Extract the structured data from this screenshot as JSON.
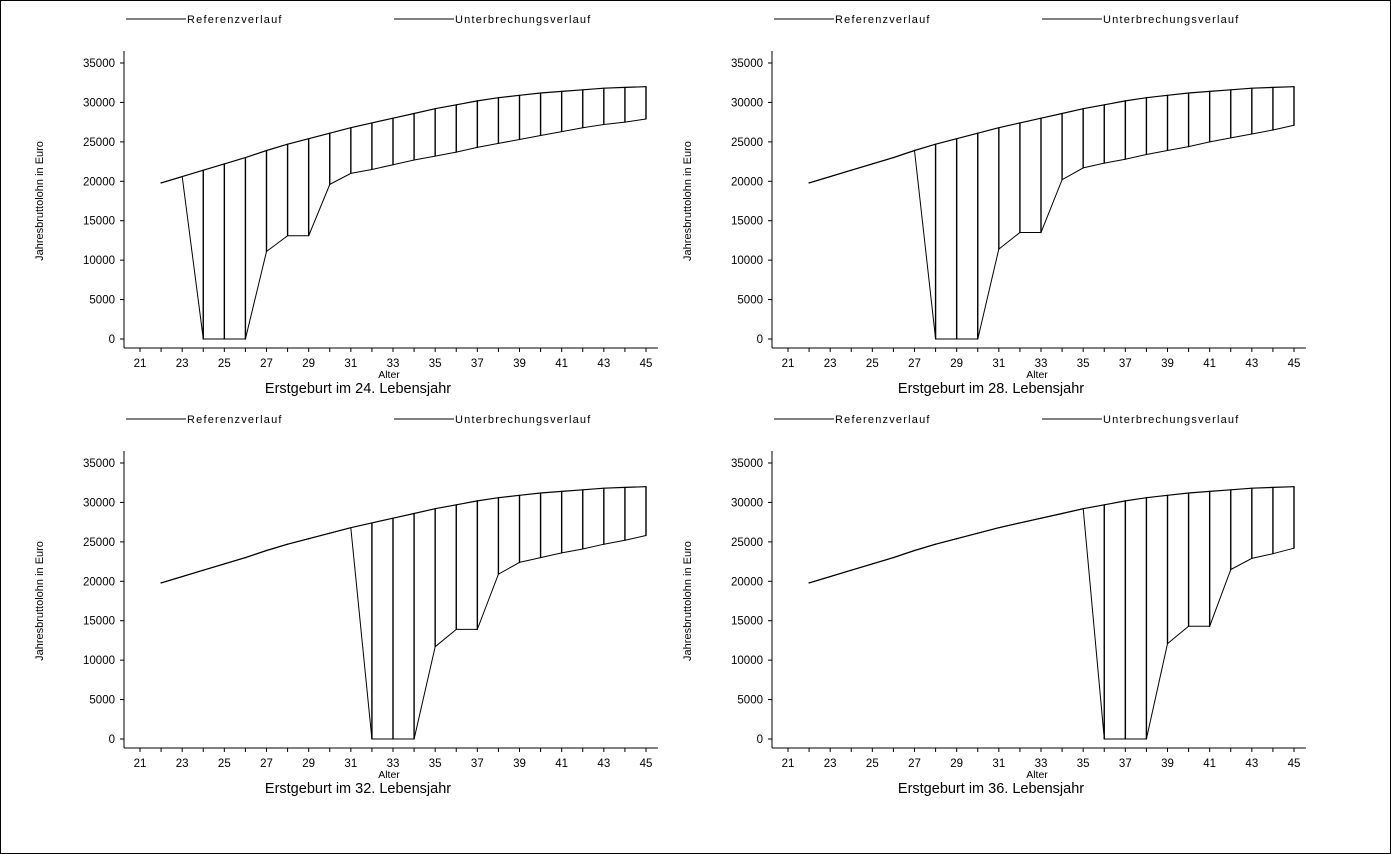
{
  "chart_data": [
    {
      "type": "line",
      "title": "Erstgeburt im 24. Lebensjahr",
      "xlabel": "Alter",
      "ylabel": "Jahresbruttolohn in Euro",
      "xlim": [
        21,
        45
      ],
      "ylim": [
        0,
        35000
      ],
      "xticks": [
        "21",
        "23",
        "25",
        "27",
        "29",
        "31",
        "33",
        "35",
        "37",
        "39",
        "41",
        "43",
        "45"
      ],
      "yticks": [
        "0",
        "5000",
        "10000",
        "15000",
        "20000",
        "25000",
        "30000",
        "35000"
      ],
      "legend": [
        "Referenzverlauf",
        "Unterbrechungsverlauf"
      ],
      "legend_position": "top",
      "x": [
        22,
        23,
        24,
        25,
        26,
        27,
        28,
        29,
        30,
        31,
        32,
        33,
        34,
        35,
        36,
        37,
        38,
        39,
        40,
        41,
        42,
        43,
        44,
        45
      ],
      "series": [
        {
          "name": "Referenzverlauf",
          "values": [
            19800,
            20600,
            21400,
            22200,
            23000,
            23900,
            24700,
            25400,
            26100,
            26800,
            27400,
            28000,
            28600,
            29200,
            29700,
            30200,
            30600,
            30900,
            31200,
            31400,
            31600,
            31800,
            31900,
            32000
          ]
        },
        {
          "name": "Unterbrechungsverlauf",
          "values": [
            19800,
            20600,
            0,
            0,
            0,
            11100,
            13100,
            13100,
            19600,
            21000,
            21500,
            22100,
            22700,
            23200,
            23700,
            24300,
            24800,
            25300,
            25800,
            26300,
            26800,
            27200,
            27500,
            27900
          ]
        }
      ]
    },
    {
      "type": "line",
      "title": "Erstgeburt im 28. Lebensjahr",
      "xlabel": "Alter",
      "ylabel": "Jahresbruttolohn in Euro",
      "xlim": [
        21,
        45
      ],
      "ylim": [
        0,
        35000
      ],
      "xticks": [
        "21",
        "23",
        "25",
        "27",
        "29",
        "31",
        "33",
        "35",
        "37",
        "39",
        "41",
        "43",
        "45"
      ],
      "yticks": [
        "0",
        "5000",
        "10000",
        "15000",
        "20000",
        "25000",
        "30000",
        "35000"
      ],
      "legend": [
        "Referenzverlauf",
        "Unterbrechungsverlauf"
      ],
      "legend_position": "top",
      "x": [
        22,
        23,
        24,
        25,
        26,
        27,
        28,
        29,
        30,
        31,
        32,
        33,
        34,
        35,
        36,
        37,
        38,
        39,
        40,
        41,
        42,
        43,
        44,
        45
      ],
      "series": [
        {
          "name": "Referenzverlauf",
          "values": [
            19800,
            20600,
            21400,
            22200,
            23000,
            23900,
            24700,
            25400,
            26100,
            26800,
            27400,
            28000,
            28600,
            29200,
            29700,
            30200,
            30600,
            30900,
            31200,
            31400,
            31600,
            31800,
            31900,
            32000
          ]
        },
        {
          "name": "Unterbrechungsverlauf",
          "values": [
            19800,
            20600,
            21400,
            22200,
            23000,
            23900,
            0,
            0,
            0,
            11400,
            13500,
            13500,
            20200,
            21700,
            22300,
            22800,
            23400,
            23900,
            24400,
            25000,
            25500,
            26000,
            26500,
            27100
          ]
        }
      ]
    },
    {
      "type": "line",
      "title": "Erstgeburt im 32. Lebensjahr",
      "xlabel": "Alter",
      "ylabel": "Jahresbruttolohn in Euro",
      "xlim": [
        21,
        45
      ],
      "ylim": [
        0,
        35000
      ],
      "xticks": [
        "21",
        "23",
        "25",
        "27",
        "29",
        "31",
        "33",
        "35",
        "37",
        "39",
        "41",
        "43",
        "45"
      ],
      "yticks": [
        "0",
        "5000",
        "10000",
        "15000",
        "20000",
        "25000",
        "30000",
        "35000"
      ],
      "legend": [
        "Referenzverlauf",
        "Unterbrechungsverlauf"
      ],
      "legend_position": "top",
      "x": [
        22,
        23,
        24,
        25,
        26,
        27,
        28,
        29,
        30,
        31,
        32,
        33,
        34,
        35,
        36,
        37,
        38,
        39,
        40,
        41,
        42,
        43,
        44,
        45
      ],
      "series": [
        {
          "name": "Referenzverlauf",
          "values": [
            19800,
            20600,
            21400,
            22200,
            23000,
            23900,
            24700,
            25400,
            26100,
            26800,
            27400,
            28000,
            28600,
            29200,
            29700,
            30200,
            30600,
            30900,
            31200,
            31400,
            31600,
            31800,
            31900,
            32000
          ]
        },
        {
          "name": "Unterbrechungsverlauf",
          "values": [
            19800,
            20600,
            21400,
            22200,
            23000,
            23900,
            24700,
            25400,
            26100,
            26800,
            0,
            0,
            0,
            11700,
            13900,
            13900,
            20900,
            22400,
            23000,
            23600,
            24100,
            24700,
            25200,
            25800
          ]
        }
      ]
    },
    {
      "type": "line",
      "title": "Erstgeburt im 36. Lebensjahr",
      "xlabel": "Alter",
      "ylabel": "Jahresbruttolohn in Euro",
      "xlim": [
        21,
        45
      ],
      "ylim": [
        0,
        35000
      ],
      "xticks": [
        "21",
        "23",
        "25",
        "27",
        "29",
        "31",
        "33",
        "35",
        "37",
        "39",
        "41",
        "43",
        "45"
      ],
      "yticks": [
        "0",
        "5000",
        "10000",
        "15000",
        "20000",
        "25000",
        "30000",
        "35000"
      ],
      "legend": [
        "Referenzverlauf",
        "Unterbrechungsverlauf"
      ],
      "legend_position": "top",
      "x": [
        22,
        23,
        24,
        25,
        26,
        27,
        28,
        29,
        30,
        31,
        32,
        33,
        34,
        35,
        36,
        37,
        38,
        39,
        40,
        41,
        42,
        43,
        44,
        45
      ],
      "series": [
        {
          "name": "Referenzverlauf",
          "values": [
            19800,
            20600,
            21400,
            22200,
            23000,
            23900,
            24700,
            25400,
            26100,
            26800,
            27400,
            28000,
            28600,
            29200,
            29700,
            30200,
            30600,
            30900,
            31200,
            31400,
            31600,
            31800,
            31900,
            32000
          ]
        },
        {
          "name": "Unterbrechungsverlauf",
          "values": [
            19800,
            20600,
            21400,
            22200,
            23000,
            23900,
            24700,
            25400,
            26100,
            26800,
            27400,
            28000,
            28600,
            29200,
            0,
            0,
            0,
            12100,
            14300,
            14300,
            21500,
            22900,
            23500,
            24200
          ]
        }
      ]
    }
  ]
}
